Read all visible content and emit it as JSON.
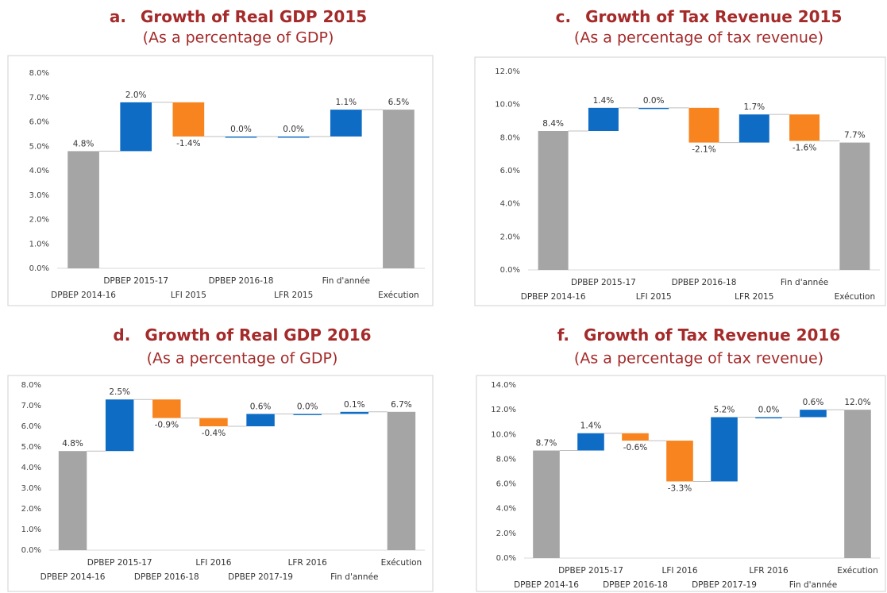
{
  "chart_data": [
    {
      "type": "waterfall",
      "label": "a.",
      "title": "Growth of Real GDP 2015",
      "subtitle": "(As a percentage of GDP)",
      "categories": [
        "DPBEP 2014-16",
        "DPBEP 2015-17",
        "LFI 2015",
        "DPBEP 2016-18",
        "LFR 2015",
        "Fin d'année",
        "Exécution"
      ],
      "values": [
        4.8,
        2.0,
        -1.4,
        0.0,
        0.0,
        1.1,
        6.5
      ],
      "value_labels": [
        "4.8%",
        "2.0%",
        "-1.4%",
        "0.0%",
        "0.0%",
        "1.1%",
        "6.5%"
      ],
      "totals": [
        true,
        false,
        false,
        false,
        false,
        false,
        true
      ],
      "colors": {
        "increase": "#0f6cc4",
        "decrease": "#f7841f",
        "total": "#a5a5a5"
      },
      "ylim": [
        0,
        8
      ],
      "yticks": [
        {
          "value": 0,
          "label": "0.0%"
        },
        {
          "value": 1,
          "label": "1.0%"
        },
        {
          "value": 2,
          "label": "2.0%"
        },
        {
          "value": 3,
          "label": "3.0%"
        },
        {
          "value": 4,
          "label": "4.0%"
        },
        {
          "value": 5,
          "label": "5.0%"
        },
        {
          "value": 6,
          "label": "6.0%"
        },
        {
          "value": 7,
          "label": "7.0%"
        },
        {
          "value": 8,
          "label": "8.0%"
        }
      ]
    },
    {
      "type": "waterfall",
      "label": "c.",
      "title": "Growth of Tax Revenue 2015",
      "subtitle": "(As a percentage of tax revenue)",
      "categories": [
        "DPBEP 2014-16",
        "DPBEP 2015-17",
        "LFI 2015",
        "DPBEP 2016-18",
        "LFR 2015",
        "Fin d'année",
        "Exécution"
      ],
      "values": [
        8.4,
        1.4,
        0.0,
        -2.1,
        1.7,
        -1.6,
        7.7
      ],
      "value_labels": [
        "8.4%",
        "1.4%",
        "0.0%",
        "-2.1%",
        "1.7%",
        "-1.6%",
        "7.7%"
      ],
      "totals": [
        true,
        false,
        false,
        false,
        false,
        false,
        true
      ],
      "colors": {
        "increase": "#0f6cc4",
        "decrease": "#f7841f",
        "total": "#a5a5a5"
      },
      "ylim": [
        0,
        12
      ],
      "yticks": [
        {
          "value": 0,
          "label": "0.0%"
        },
        {
          "value": 2,
          "label": "2.0%"
        },
        {
          "value": 4,
          "label": "4.0%"
        },
        {
          "value": 6,
          "label": "6.0%"
        },
        {
          "value": 8,
          "label": "8.0%"
        },
        {
          "value": 10,
          "label": "10.0%"
        },
        {
          "value": 12,
          "label": "12.0%"
        }
      ]
    },
    {
      "type": "waterfall",
      "label": "d.",
      "title": "Growth of Real GDP 2016",
      "subtitle": "(As a percentage of GDP)",
      "categories": [
        "DPBEP 2014-16",
        "DPBEP 2015-17",
        "DPBEP 2016-18",
        "LFI 2016",
        "DPBEP 2017-19",
        "LFR 2016",
        "Fin d'année",
        "Exécution"
      ],
      "values": [
        4.8,
        2.5,
        -0.9,
        -0.4,
        0.6,
        0.0,
        0.1,
        6.7
      ],
      "value_labels": [
        "4.8%",
        "2.5%",
        "-0.9%",
        "-0.4%",
        "0.6%",
        "0.0%",
        "0.1%",
        "6.7%"
      ],
      "totals": [
        true,
        false,
        false,
        false,
        false,
        false,
        false,
        true
      ],
      "colors": {
        "increase": "#0f6cc4",
        "decrease": "#f7841f",
        "total": "#a5a5a5"
      },
      "ylim": [
        0,
        8
      ],
      "yticks": [
        {
          "value": 0,
          "label": "0.0%"
        },
        {
          "value": 1,
          "label": "1.0%"
        },
        {
          "value": 2,
          "label": "2.0%"
        },
        {
          "value": 3,
          "label": "3.0%"
        },
        {
          "value": 4,
          "label": "4.0%"
        },
        {
          "value": 5,
          "label": "5.0%"
        },
        {
          "value": 6,
          "label": "6.0%"
        },
        {
          "value": 7,
          "label": "7.0%"
        },
        {
          "value": 8,
          "label": "8.0%"
        }
      ]
    },
    {
      "type": "waterfall",
      "label": "f.",
      "title": "Growth of Tax Revenue 2016",
      "subtitle": "(As a percentage of tax revenue)",
      "categories": [
        "DPBEP 2014-16",
        "DPBEP 2015-17",
        "DPBEP 2016-18",
        "LFI 2016",
        "DPBEP 2017-19",
        "LFR 2016",
        "Fin d'année",
        "Exécution"
      ],
      "values": [
        8.7,
        1.4,
        -0.6,
        -3.3,
        5.2,
        0.0,
        0.6,
        12.0
      ],
      "value_labels": [
        "8.7%",
        "1.4%",
        "-0.6%",
        "-3.3%",
        "5.2%",
        "0.0%",
        "0.6%",
        "12.0%"
      ],
      "totals": [
        true,
        false,
        false,
        false,
        false,
        false,
        false,
        true
      ],
      "colors": {
        "increase": "#0f6cc4",
        "decrease": "#f7841f",
        "total": "#a5a5a5"
      },
      "ylim": [
        0,
        14
      ],
      "yticks": [
        {
          "value": 0,
          "label": "0.0%"
        },
        {
          "value": 2,
          "label": "2.0%"
        },
        {
          "value": 4,
          "label": "4.0%"
        },
        {
          "value": 6,
          "label": "6.0%"
        },
        {
          "value": 8,
          "label": "8.0%"
        },
        {
          "value": 10,
          "label": "10.0%"
        },
        {
          "value": 12,
          "label": "12.0%"
        },
        {
          "value": 14,
          "label": "14.0%"
        }
      ]
    }
  ]
}
